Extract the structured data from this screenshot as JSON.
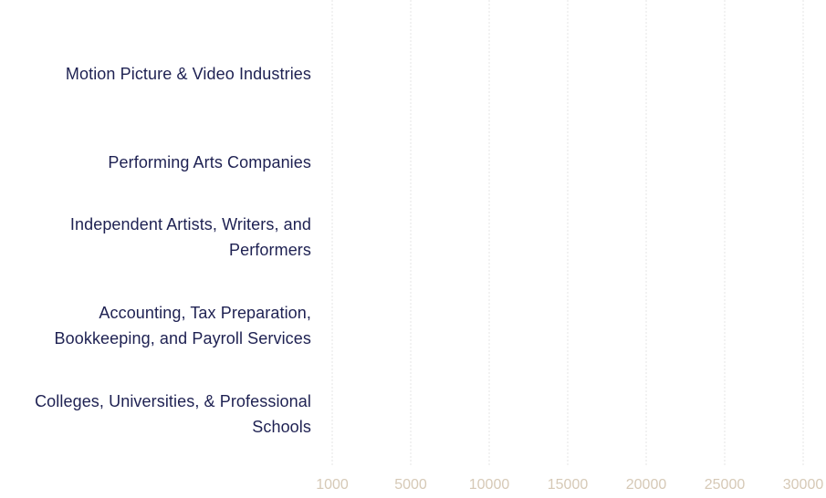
{
  "chart_data": {
    "type": "bar",
    "orientation": "horizontal",
    "categories": [
      "Motion Picture & Video Industries",
      "Performing Arts Companies",
      "Independent Artists, Writers, and Performers",
      "Accounting, Tax Preparation, Bookkeeping, and Payroll Services",
      "Colleges, Universities, & Professional Schools"
    ],
    "values": [
      null,
      null,
      null,
      null,
      null
    ],
    "x_ticks": [
      "1000",
      "5000",
      "10000",
      "15000",
      "20000",
      "25000",
      "30000"
    ],
    "grid": true,
    "colors": {
      "category_text": "#1e2152",
      "tick_text": "#d6c9b6",
      "gridline": "#e6e6e6"
    }
  }
}
